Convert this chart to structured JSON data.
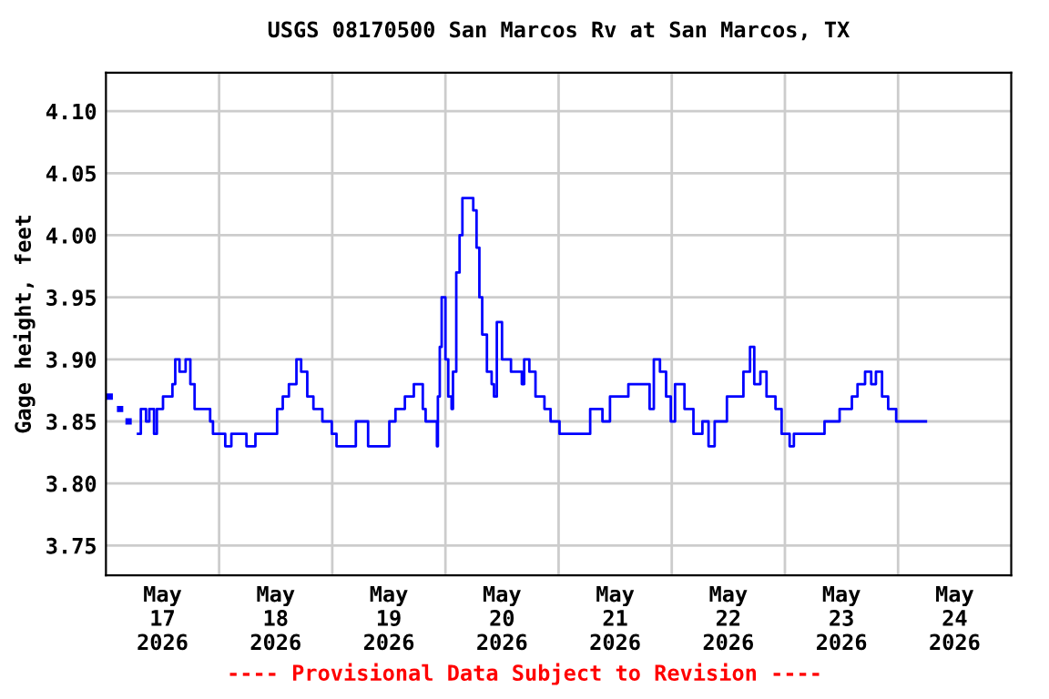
{
  "chart_data": {
    "type": "step",
    "title": "USGS 08170500 San Marcos Rv at San Marcos, TX",
    "ylabel": "Gage height, feet",
    "annotations": [
      "---- Provisional Data Subject to Revision ----"
    ],
    "x": [
      "2026-05-17T00:48",
      "2026-05-17T01:54",
      "2026-05-17T03:00",
      "2026-05-17T03:54",
      "2026-05-17T04:48",
      "2026-05-17T05:48",
      "2026-05-17T06:48",
      "2026-05-17T07:24",
      "2026-05-17T08:30",
      "2026-05-17T09:12",
      "2026-05-17T10:12",
      "2026-05-17T10:48",
      "2026-05-17T12:06",
      "2026-05-17T14:06",
      "2026-05-17T14:42",
      "2026-05-17T15:36",
      "2026-05-17T16:54",
      "2026-05-17T17:54",
      "2026-05-17T18:48",
      "2026-05-17T22:06",
      "2026-05-17T22:42",
      "2026-05-18T01:18",
      "2026-05-18T02:36",
      "2026-05-18T05:48",
      "2026-05-18T07:42",
      "2026-05-18T11:36",
      "2026-05-18T12:18",
      "2026-05-18T13:30",
      "2026-05-18T14:48",
      "2026-05-18T16:24",
      "2026-05-18T17:24",
      "2026-05-18T18:42",
      "2026-05-18T20:00",
      "2026-05-18T21:54",
      "2026-05-18T23:54",
      "2026-05-19T00:54",
      "2026-05-19T03:06",
      "2026-05-19T05:00",
      "2026-05-19T07:36",
      "2026-05-19T09:30",
      "2026-05-19T12:06",
      "2026-05-19T13:24",
      "2026-05-19T15:24",
      "2026-05-19T17:18",
      "2026-05-19T18:18",
      "2026-05-19T19:12",
      "2026-05-19T19:48",
      "2026-05-19T21:48",
      "2026-05-19T22:12",
      "2026-05-19T22:24",
      "2026-05-19T22:48",
      "2026-05-19T23:12",
      "2026-05-20T00:00",
      "2026-05-20T00:36",
      "2026-05-20T01:18",
      "2026-05-20T01:36",
      "2026-05-20T02:18",
      "2026-05-20T03:00",
      "2026-05-20T03:36",
      "2026-05-20T05:30",
      "2026-05-20T05:54",
      "2026-05-20T06:36",
      "2026-05-20T07:12",
      "2026-05-20T07:48",
      "2026-05-20T08:48",
      "2026-05-20T09:48",
      "2026-05-20T10:18",
      "2026-05-20T10:54",
      "2026-05-20T12:00",
      "2026-05-20T13:54",
      "2026-05-20T16:12",
      "2026-05-20T16:42",
      "2026-05-20T17:48",
      "2026-05-20T19:06",
      "2026-05-20T21:00",
      "2026-05-20T22:18",
      "2026-05-21T00:12",
      "2026-05-21T02:48",
      "2026-05-21T05:24",
      "2026-05-21T06:42",
      "2026-05-21T09:18",
      "2026-05-21T10:54",
      "2026-05-21T13:06",
      "2026-05-21T14:48",
      "2026-05-21T16:24",
      "2026-05-21T19:18",
      "2026-05-21T20:12",
      "2026-05-21T21:30",
      "2026-05-21T22:48",
      "2026-05-21T23:48",
      "2026-05-22T00:42",
      "2026-05-22T02:42",
      "2026-05-22T04:36",
      "2026-05-22T06:30",
      "2026-05-22T07:48",
      "2026-05-22T09:06",
      "2026-05-22T11:42",
      "2026-05-22T13:36",
      "2026-05-22T15:12",
      "2026-05-22T16:36",
      "2026-05-22T17:30",
      "2026-05-22T18:48",
      "2026-05-22T20:06",
      "2026-05-22T22:00",
      "2026-05-22T23:18",
      "2026-05-23T01:00",
      "2026-05-23T01:54",
      "2026-05-23T05:06",
      "2026-05-23T08:24",
      "2026-05-23T10:18",
      "2026-05-23T11:36",
      "2026-05-23T14:12",
      "2026-05-23T15:24",
      "2026-05-23T17:00",
      "2026-05-23T18:18",
      "2026-05-23T19:18",
      "2026-05-23T20:36",
      "2026-05-23T21:54",
      "2026-05-23T23:36",
      "2026-05-24T05:54"
    ],
    "series": [
      {
        "color": "#0000ff",
        "values": [
          3.87,
          null,
          3.86,
          null,
          3.85,
          null,
          3.84,
          3.86,
          3.85,
          3.86,
          3.84,
          3.86,
          3.87,
          3.88,
          3.9,
          3.89,
          3.9,
          3.88,
          3.86,
          3.85,
          3.84,
          3.83,
          3.84,
          3.83,
          3.84,
          3.84,
          3.86,
          3.87,
          3.88,
          3.9,
          3.89,
          3.87,
          3.86,
          3.85,
          3.84,
          3.83,
          3.83,
          3.85,
          3.83,
          3.83,
          3.85,
          3.86,
          3.87,
          3.88,
          3.88,
          3.86,
          3.85,
          3.85,
          3.83,
          3.87,
          3.91,
          3.95,
          3.9,
          3.87,
          3.86,
          3.89,
          3.97,
          4.0,
          4.03,
          4.03,
          4.02,
          3.99,
          3.95,
          3.92,
          3.89,
          3.88,
          3.87,
          3.93,
          3.9,
          3.89,
          3.88,
          3.9,
          3.89,
          3.87,
          3.86,
          3.85,
          3.84,
          3.84,
          3.84,
          3.86,
          3.85,
          3.87,
          3.87,
          3.88,
          3.88,
          3.86,
          3.9,
          3.89,
          3.87,
          3.85,
          3.88,
          3.86,
          3.84,
          3.85,
          3.83,
          3.85,
          3.87,
          3.87,
          3.89,
          3.91,
          3.88,
          3.89,
          3.87,
          3.86,
          3.84,
          3.83,
          3.84,
          3.84,
          3.85,
          3.85,
          3.86,
          3.87,
          3.88,
          3.89,
          3.88,
          3.89,
          3.87,
          3.86,
          3.85,
          3.85
        ]
      }
    ],
    "xlim": [
      "2026-05-17",
      "2026-05-25"
    ],
    "xticks": [
      {
        "value": "2026-05-17T12:00",
        "label": "May\n17\n2026"
      },
      {
        "value": "2026-05-18T00:00",
        "label": null
      },
      {
        "value": "2026-05-18T12:00",
        "label": "May\n18\n2026"
      },
      {
        "value": "2026-05-19T00:00",
        "label": null
      },
      {
        "value": "2026-05-19T12:00",
        "label": "May\n19\n2026"
      },
      {
        "value": "2026-05-20T00:00",
        "label": null
      },
      {
        "value": "2026-05-20T12:00",
        "label": "May\n20\n2026"
      },
      {
        "value": "2026-05-21T00:00",
        "label": null
      },
      {
        "value": "2026-05-21T12:00",
        "label": "May\n21\n2026"
      },
      {
        "value": "2026-05-22T00:00",
        "label": null
      },
      {
        "value": "2026-05-22T12:00",
        "label": "May\n22\n2026"
      },
      {
        "value": "2026-05-23T00:00",
        "label": null
      },
      {
        "value": "2026-05-23T12:00",
        "label": "May\n23\n2026"
      },
      {
        "value": "2026-05-24T00:00",
        "label": null
      },
      {
        "value": "2026-05-24T12:00",
        "label": "May\n24\n2026"
      }
    ],
    "ylim": [
      3.726,
      4.131
    ],
    "yticks": [
      {
        "value": 3.75,
        "label": "3.75"
      },
      {
        "value": 3.8,
        "label": "3.80"
      },
      {
        "value": 3.85,
        "label": "3.85"
      },
      {
        "value": 3.9,
        "label": "3.90"
      },
      {
        "value": 3.95,
        "label": "3.95"
      },
      {
        "value": 4.0,
        "label": "4.00"
      },
      {
        "value": 4.05,
        "label": "4.05"
      },
      {
        "value": 4.1,
        "label": "4.10"
      }
    ],
    "grid": true
  }
}
